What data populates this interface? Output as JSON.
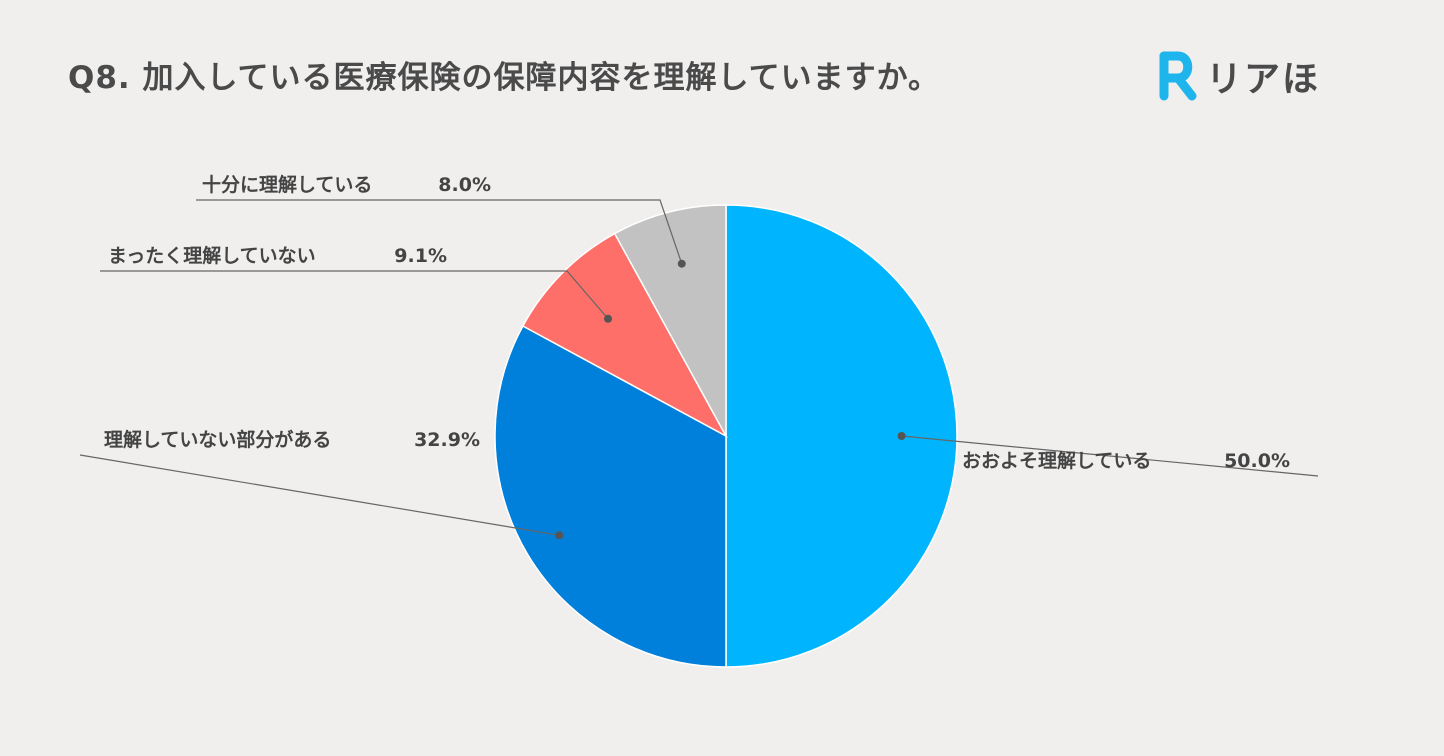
{
  "header": {
    "title": "Q8. 加入している医療保険の保障内容を理解していますか。",
    "logo_mark": "R",
    "logo_text": "リアほ",
    "logo_icon": "rounded-R-logo-icon"
  },
  "colors": {
    "brand": "#1eb4ec",
    "background": "#f0efee",
    "text": "#444444",
    "leader": "#666666"
  },
  "chart_data": {
    "type": "pie",
    "title": "",
    "start": "12 o'clock, clockwise",
    "labels_outside": true,
    "slices": [
      {
        "label": "おおよそ理解している",
        "value": 50.0,
        "display": "50.0%",
        "color": "#00b5fd"
      },
      {
        "label": "理解していない部分がある",
        "value": 32.9,
        "display": "32.9%",
        "color": "#0080db"
      },
      {
        "label": "まったく理解していない",
        "value": 9.1,
        "display": "9.1%",
        "color": "#ff6f69"
      },
      {
        "label": "十分に理解している",
        "value": 8.0,
        "display": "8.0%",
        "color": "#c2c2c2"
      }
    ]
  }
}
